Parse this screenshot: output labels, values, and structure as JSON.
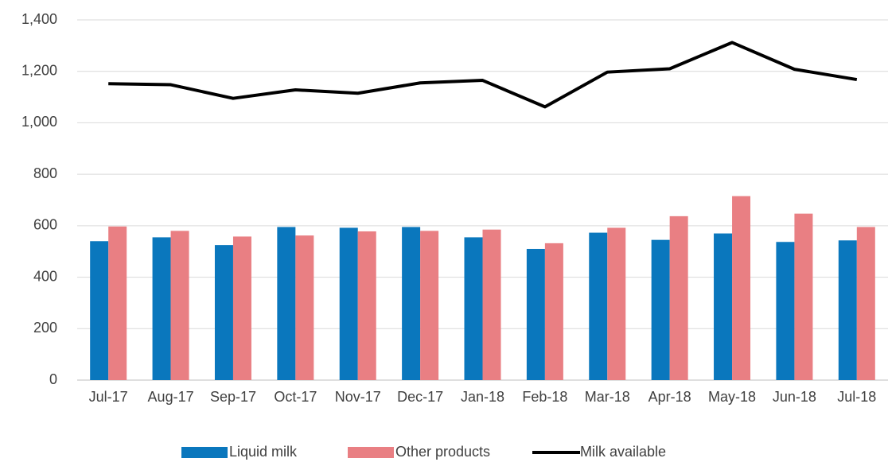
{
  "chart_data": {
    "type": "bar_line",
    "categories": [
      "Jul-17",
      "Aug-17",
      "Sep-17",
      "Oct-17",
      "Nov-17",
      "Dec-17",
      "Jan-18",
      "Feb-18",
      "Mar-18",
      "Apr-18",
      "May-18",
      "Jun-18",
      "Jul-18"
    ],
    "series": [
      {
        "name": "Liquid milk",
        "type": "bar",
        "color": "#0a77bd",
        "values": [
          540,
          555,
          525,
          595,
          592,
          595,
          555,
          510,
          573,
          545,
          570,
          537,
          543
        ]
      },
      {
        "name": "Other products",
        "type": "bar",
        "color": "#e97f83",
        "values": [
          597,
          580,
          558,
          562,
          578,
          580,
          585,
          532,
          592,
          637,
          715,
          647,
          595
        ]
      },
      {
        "name": "Milk available",
        "type": "line",
        "color": "#000000",
        "values": [
          1152,
          1148,
          1095,
          1128,
          1115,
          1155,
          1165,
          1062,
          1197,
          1210,
          1312,
          1208,
          1168
        ]
      }
    ],
    "ylim": [
      0,
      1400
    ],
    "yticks": [
      0,
      200,
      400,
      600,
      800,
      {
        "value": 1000,
        "label": "1,000"
      },
      {
        "value": 1200,
        "label": "1,200"
      },
      {
        "value": 1400,
        "label": "1,400"
      }
    ],
    "grid": true,
    "legend": "bottom"
  }
}
